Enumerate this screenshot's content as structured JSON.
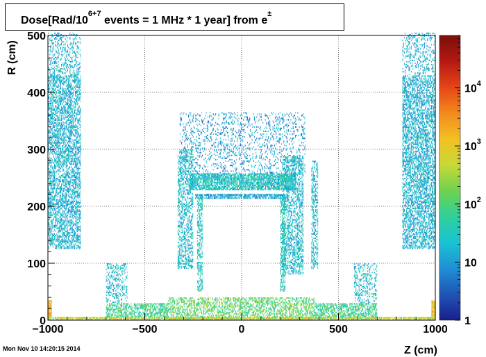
{
  "header": {
    "title_main": "Dose[Rad/10",
    "title_sup1": "6+7",
    "title_mid": " events = 1 MHz * 1 year] from e",
    "title_sup2": "±"
  },
  "timestamp": "Mon Nov 10 14:20:15 2014",
  "chart_data": {
    "type": "heatmap",
    "title": "Dose[Rad/10^6+7 events = 1 MHz * 1 year] from e±",
    "xlabel": "Z (cm)",
    "ylabel": "R (cm)",
    "xlim": [
      -1000,
      1000
    ],
    "ylim": [
      0,
      500
    ],
    "x_ticks": [
      "−1000",
      "−500",
      "0",
      "500",
      "1000"
    ],
    "x_tick_values": [
      -1000,
      -500,
      0,
      500,
      1000
    ],
    "y_ticks": [
      "0",
      "100",
      "200",
      "300",
      "400",
      "500"
    ],
    "y_tick_values": [
      0,
      100,
      200,
      300,
      400,
      500
    ],
    "grid": true,
    "colorbar": {
      "scale": "log",
      "range": [
        1,
        80000
      ],
      "labels": [
        {
          "base": "1",
          "exp": "",
          "value": 1
        },
        {
          "base": "10",
          "exp": "",
          "value": 10
        },
        {
          "base": "10",
          "exp": "2",
          "value": 100
        },
        {
          "base": "10",
          "exp": "3",
          "value": 1000
        },
        {
          "base": "10",
          "exp": "4",
          "value": 10000
        }
      ],
      "colors": [
        "#1b1f8c",
        "#1f55b5",
        "#1f8fd6",
        "#19c3d2",
        "#2fd09a",
        "#6fd24f",
        "#c8d936",
        "#f3c023",
        "#f28a1c",
        "#e64516",
        "#b51912",
        "#7a0f0a"
      ]
    },
    "regions": [
      {
        "name": "endcap-left",
        "z": [
          -1000,
          -830
        ],
        "r": [
          125,
          505
        ],
        "level": 1.3,
        "density": 0.55,
        "sparse_top": 0.15
      },
      {
        "name": "endcap-right",
        "z": [
          830,
          1000
        ],
        "r": [
          125,
          505
        ],
        "level": 1.3,
        "density": 0.55,
        "sparse_top": 0.15
      },
      {
        "name": "barrel-top",
        "z": [
          -270,
          280
        ],
        "r": [
          228,
          258
        ],
        "level": 1.5,
        "density": 0.8
      },
      {
        "name": "barrel-support",
        "z": [
          -240,
          240
        ],
        "r": [
          213,
          222
        ],
        "level": 1.2,
        "density": 0.75
      },
      {
        "name": "barrel-scatter",
        "z": [
          -320,
          330
        ],
        "r": [
          258,
          365
        ],
        "level": 1.1,
        "density": 0.18
      },
      {
        "name": "barrel-left-wall",
        "z": [
          -330,
          -250
        ],
        "r": [
          90,
          300
        ],
        "level": 1.4,
        "density": 0.45
      },
      {
        "name": "barrel-right-wall",
        "z": [
          210,
          320
        ],
        "r": [
          80,
          290
        ],
        "level": 1.4,
        "density": 0.45
      },
      {
        "name": "barrel-right-outer",
        "z": [
          360,
          395
        ],
        "r": [
          90,
          280
        ],
        "level": 1.4,
        "density": 0.4
      },
      {
        "name": "inner-left-column",
        "z": [
          -230,
          -200
        ],
        "r": [
          50,
          215
        ],
        "level": 1.6,
        "density": 0.55
      },
      {
        "name": "inner-right-column",
        "z": [
          200,
          225
        ],
        "r": [
          50,
          215
        ],
        "level": 1.6,
        "density": 0.55
      },
      {
        "name": "beam-left",
        "z": [
          -700,
          -380
        ],
        "r": [
          5,
          30
        ],
        "level": 1.9,
        "density": 0.6
      },
      {
        "name": "beam-right",
        "z": [
          380,
          700
        ],
        "r": [
          5,
          30
        ],
        "level": 1.9,
        "density": 0.6
      },
      {
        "name": "beam-center",
        "z": [
          -380,
          380
        ],
        "r": [
          0,
          40
        ],
        "level": 2.1,
        "density": 0.5
      },
      {
        "name": "cone-left",
        "z": [
          -700,
          -590
        ],
        "r": [
          30,
          100
        ],
        "level": 1.4,
        "density": 0.3
      },
      {
        "name": "cone-right",
        "z": [
          580,
          700
        ],
        "r": [
          30,
          100
        ],
        "level": 1.4,
        "density": 0.3
      },
      {
        "name": "hot-left",
        "z": [
          -1000,
          -980
        ],
        "r": [
          5,
          35
        ],
        "level": 3.1,
        "density": 0.9
      },
      {
        "name": "hot-right",
        "z": [
          980,
          1000
        ],
        "r": [
          5,
          35
        ],
        "level": 3.1,
        "density": 0.9
      },
      {
        "name": "beamline",
        "z": [
          -1000,
          1000
        ],
        "r": [
          0,
          6
        ],
        "level": 2.6,
        "density": 0.85
      }
    ]
  }
}
